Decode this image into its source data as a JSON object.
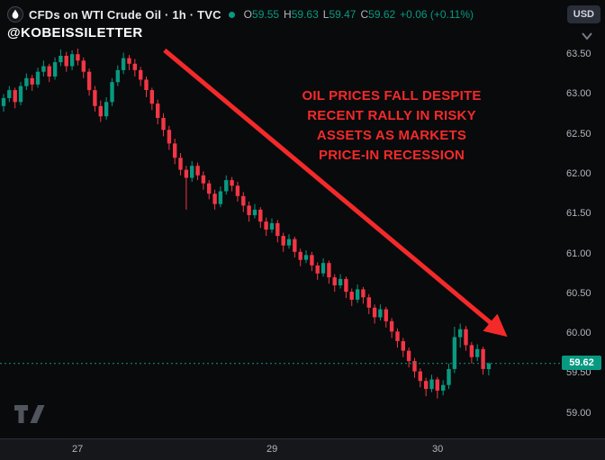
{
  "header": {
    "symbol_title": "CFDs on WTI Crude Oil · 1h · TVC",
    "ohlc": {
      "open_label": "O",
      "open": "59.55",
      "high_label": "H",
      "high": "59.63",
      "low_label": "L",
      "low": "59.47",
      "close_label": "C",
      "close": "59.62",
      "change": "+0.06 (+0.11%)"
    },
    "currency_button": "USD"
  },
  "watermark_handle": "@KOBEISSILETTER",
  "annotation": {
    "lines": [
      "OIL PRICES FALL DESPITE",
      "RECENT RALLY IN RISKY",
      "ASSETS AS MARKETS",
      "PRICE-IN RECESSION"
    ]
  },
  "colors": {
    "up": "#089981",
    "down": "#f23645",
    "annotation_red": "#f42a2a",
    "axis_text": "#b2b5be",
    "badge_bg": "#089981"
  },
  "price_axis": {
    "ticks": [
      "63.50",
      "63.00",
      "62.50",
      "62.00",
      "61.50",
      "61.00",
      "60.50",
      "60.00",
      "59.50",
      "59.00"
    ],
    "last_price": "59.62"
  },
  "time_axis": {
    "ticks": [
      {
        "label": "27",
        "index": 13
      },
      {
        "label": "29",
        "index": 47
      },
      {
        "label": "30",
        "index": 76
      }
    ]
  },
  "chart_data": {
    "type": "candlestick",
    "title": "CFDs on WTI Crude Oil",
    "timeframe": "1h",
    "exchange": "TVC",
    "currency": "USD",
    "ylim": [
      58.68,
      64.18
    ],
    "last_price": 59.62,
    "arrow": {
      "from_index": 28.2,
      "from_price": 63.55,
      "to_index": 87,
      "to_price": 60.03
    },
    "candles": [
      [
        62.85,
        63.0,
        62.78,
        62.95
      ],
      [
        62.95,
        63.1,
        62.9,
        63.05
      ],
      [
        63.05,
        63.08,
        62.82,
        62.9
      ],
      [
        62.9,
        63.15,
        62.86,
        63.1
      ],
      [
        63.1,
        63.26,
        63.05,
        63.2
      ],
      [
        63.2,
        63.24,
        63.04,
        63.12
      ],
      [
        63.12,
        63.33,
        63.08,
        63.28
      ],
      [
        63.28,
        63.42,
        63.22,
        63.35
      ],
      [
        63.35,
        63.38,
        63.15,
        63.22
      ],
      [
        63.22,
        63.46,
        63.18,
        63.4
      ],
      [
        63.4,
        63.56,
        63.35,
        63.48
      ],
      [
        63.48,
        63.53,
        63.28,
        63.35
      ],
      [
        63.35,
        63.55,
        63.3,
        63.5
      ],
      [
        63.5,
        63.57,
        63.36,
        63.42
      ],
      [
        63.42,
        63.46,
        63.2,
        63.28
      ],
      [
        63.28,
        63.32,
        62.98,
        63.05
      ],
      [
        63.05,
        63.1,
        62.78,
        62.85
      ],
      [
        62.85,
        62.92,
        62.65,
        62.72
      ],
      [
        62.72,
        62.96,
        62.68,
        62.9
      ],
      [
        62.9,
        63.2,
        62.85,
        63.15
      ],
      [
        63.15,
        63.36,
        63.1,
        63.3
      ],
      [
        63.3,
        63.52,
        63.25,
        63.45
      ],
      [
        63.45,
        63.49,
        63.3,
        63.38
      ],
      [
        63.38,
        63.44,
        63.22,
        63.3
      ],
      [
        63.3,
        63.34,
        63.1,
        63.18
      ],
      [
        63.18,
        63.22,
        62.96,
        63.05
      ],
      [
        63.05,
        63.08,
        62.8,
        62.88
      ],
      [
        62.88,
        62.93,
        62.62,
        62.7
      ],
      [
        62.7,
        62.76,
        62.47,
        62.55
      ],
      [
        62.55,
        62.6,
        62.3,
        62.38
      ],
      [
        62.38,
        62.44,
        62.12,
        62.2
      ],
      [
        62.2,
        62.26,
        61.98,
        62.05
      ],
      [
        62.05,
        62.1,
        61.55,
        61.95
      ],
      [
        61.95,
        62.16,
        61.9,
        62.1
      ],
      [
        62.1,
        62.14,
        61.92,
        61.98
      ],
      [
        61.98,
        62.03,
        61.8,
        61.88
      ],
      [
        61.88,
        61.92,
        61.68,
        61.75
      ],
      [
        61.75,
        61.8,
        61.55,
        61.62
      ],
      [
        61.62,
        61.84,
        61.58,
        61.78
      ],
      [
        61.78,
        61.98,
        61.74,
        61.92
      ],
      [
        61.92,
        61.96,
        61.78,
        61.85
      ],
      [
        61.85,
        61.9,
        61.65,
        61.72
      ],
      [
        61.72,
        61.77,
        61.52,
        61.6
      ],
      [
        61.6,
        61.65,
        61.4,
        61.48
      ],
      [
        61.48,
        61.62,
        61.44,
        61.55
      ],
      [
        61.55,
        61.58,
        61.32,
        61.4
      ],
      [
        61.4,
        61.45,
        61.22,
        61.3
      ],
      [
        61.3,
        61.44,
        61.26,
        61.38
      ],
      [
        61.38,
        61.42,
        61.14,
        61.22
      ],
      [
        61.22,
        61.26,
        61.02,
        61.1
      ],
      [
        61.1,
        61.24,
        61.06,
        61.18
      ],
      [
        61.18,
        61.21,
        60.95,
        61.02
      ],
      [
        61.02,
        61.06,
        60.84,
        60.92
      ],
      [
        60.92,
        61.04,
        60.88,
        60.98
      ],
      [
        60.98,
        61.02,
        60.78,
        60.85
      ],
      [
        60.85,
        60.89,
        60.67,
        60.75
      ],
      [
        60.75,
        60.94,
        60.71,
        60.88
      ],
      [
        60.88,
        60.91,
        60.62,
        60.7
      ],
      [
        60.7,
        60.74,
        60.52,
        60.6
      ],
      [
        60.6,
        60.74,
        60.56,
        60.68
      ],
      [
        60.68,
        60.71,
        60.44,
        60.52
      ],
      [
        60.52,
        60.56,
        60.34,
        60.42
      ],
      [
        60.42,
        60.61,
        60.38,
        60.55
      ],
      [
        60.55,
        60.58,
        60.37,
        60.45
      ],
      [
        60.45,
        60.49,
        60.24,
        60.32
      ],
      [
        60.32,
        60.36,
        60.12,
        60.2
      ],
      [
        60.2,
        60.36,
        60.16,
        60.3
      ],
      [
        60.3,
        60.33,
        60.07,
        60.15
      ],
      [
        60.15,
        60.19,
        59.94,
        60.02
      ],
      [
        60.02,
        60.06,
        59.82,
        59.9
      ],
      [
        59.9,
        59.94,
        59.7,
        59.78
      ],
      [
        59.78,
        59.82,
        59.57,
        59.65
      ],
      [
        59.65,
        59.69,
        59.44,
        59.52
      ],
      [
        59.52,
        59.56,
        59.32,
        59.4
      ],
      [
        59.4,
        59.44,
        59.21,
        59.3
      ],
      [
        59.3,
        59.48,
        59.26,
        59.42
      ],
      [
        59.42,
        59.45,
        59.18,
        59.28
      ],
      [
        59.28,
        59.41,
        59.22,
        59.35
      ],
      [
        59.35,
        59.62,
        59.3,
        59.55
      ],
      [
        59.55,
        60.08,
        59.5,
        59.95
      ],
      [
        59.95,
        60.12,
        59.82,
        60.05
      ],
      [
        60.05,
        60.09,
        59.78,
        59.85
      ],
      [
        59.85,
        59.89,
        59.62,
        59.7
      ],
      [
        59.7,
        59.86,
        59.65,
        59.8
      ],
      [
        59.8,
        59.83,
        59.48,
        59.55
      ],
      [
        59.55,
        59.63,
        59.47,
        59.62
      ]
    ]
  }
}
